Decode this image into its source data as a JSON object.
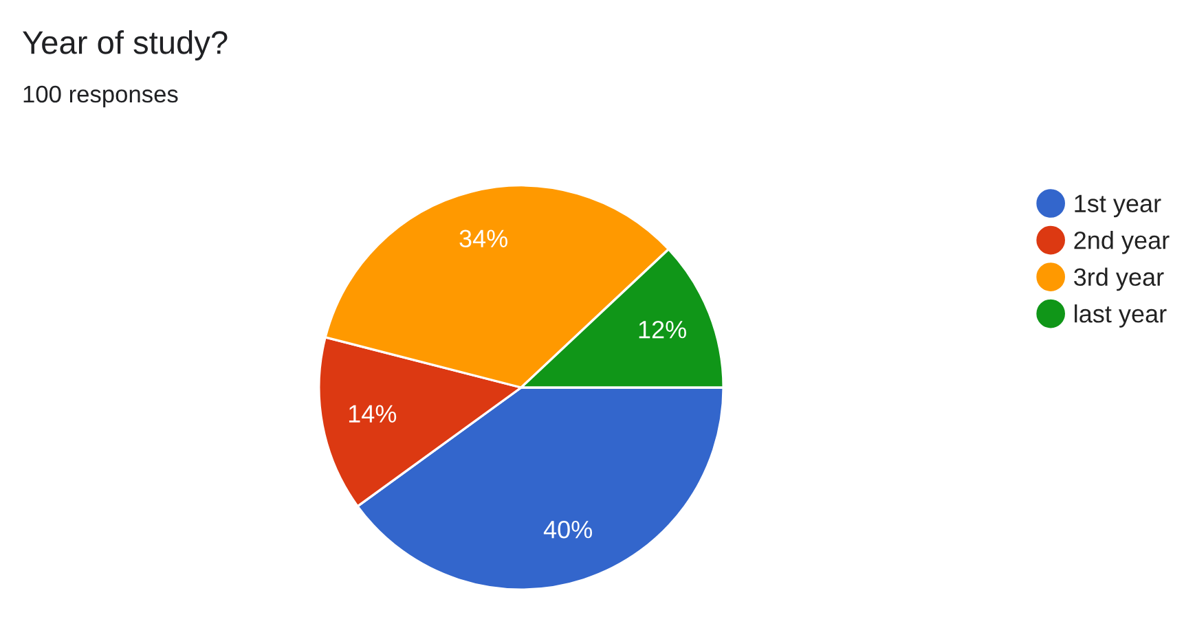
{
  "chart_data": {
    "type": "pie",
    "title": "Year of study?",
    "subtitle": "100 responses",
    "categories": [
      "1st year",
      "2nd year",
      "3rd year",
      "last year"
    ],
    "values": [
      40,
      14,
      34,
      12
    ],
    "value_labels": [
      "40%",
      "14%",
      "34%",
      "12%"
    ],
    "colors": [
      "#3366cc",
      "#dc3912",
      "#ff9900",
      "#109618"
    ],
    "legend": "right"
  }
}
